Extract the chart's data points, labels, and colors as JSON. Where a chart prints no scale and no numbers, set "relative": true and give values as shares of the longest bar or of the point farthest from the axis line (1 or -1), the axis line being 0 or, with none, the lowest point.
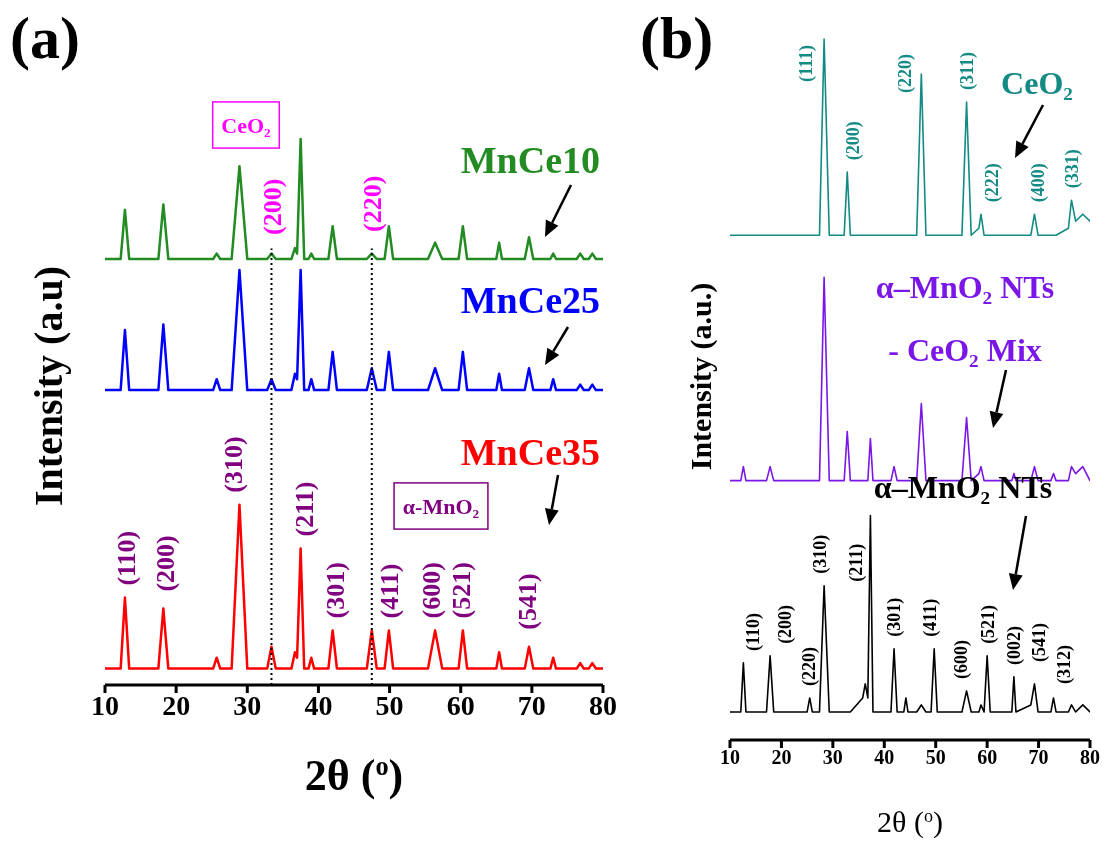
{
  "chart_data": [
    {
      "type": "line",
      "title": "(a)",
      "xlabel": "2θ ($^{o}$)",
      "ylabel": "Intensity (a.u)",
      "relative": true,
      "tick_labels": "x",
      "xlim": [
        10,
        80
      ],
      "xticks": [
        10,
        20,
        30,
        40,
        50,
        60,
        70,
        80
      ],
      "x": [
        10,
        12.2,
        12.8,
        13.4,
        17.5,
        18.2,
        18.9,
        25.2,
        25.7,
        26.2,
        27.8,
        28.9,
        30.0,
        32.8,
        33.4,
        34.0,
        36.2,
        36.7,
        37.0,
        37.5,
        38.0,
        38.6,
        39.0,
        39.4,
        41.4,
        42.0,
        42.6,
        46.8,
        47.5,
        48.2,
        49.3,
        49.9,
        50.5,
        55.4,
        56.4,
        57.4,
        59.7,
        60.3,
        60.9,
        65.0,
        65.4,
        65.8,
        69.0,
        69.6,
        70.2,
        72.6,
        73.0,
        73.4,
        76.3,
        76.8,
        77.3,
        78.0,
        78.5,
        79.0,
        80
      ],
      "series": [
        {
          "name": "MnCe10",
          "color": "#228b22",
          "values": [
            0.78,
            0.78,
            0.87,
            0.78,
            0.78,
            0.88,
            0.78,
            0.78,
            0.79,
            0.78,
            0.78,
            0.95,
            0.78,
            0.78,
            0.79,
            0.78,
            0.78,
            0.8,
            0.79,
            1.0,
            0.78,
            0.78,
            0.79,
            0.78,
            0.78,
            0.84,
            0.78,
            0.78,
            0.79,
            0.78,
            0.78,
            0.84,
            0.78,
            0.78,
            0.81,
            0.78,
            0.78,
            0.84,
            0.78,
            0.78,
            0.81,
            0.78,
            0.78,
            0.82,
            0.78,
            0.78,
            0.79,
            0.78,
            0.78,
            0.79,
            0.78,
            0.78,
            0.79,
            0.78,
            0.78
          ]
        },
        {
          "name": "MnCe25",
          "color": "#0000ff",
          "values": [
            0.54,
            0.54,
            0.65,
            0.54,
            0.54,
            0.66,
            0.54,
            0.54,
            0.56,
            0.54,
            0.54,
            0.76,
            0.54,
            0.54,
            0.56,
            0.54,
            0.54,
            0.57,
            0.56,
            0.76,
            0.54,
            0.54,
            0.56,
            0.54,
            0.54,
            0.61,
            0.54,
            0.54,
            0.58,
            0.54,
            0.54,
            0.61,
            0.54,
            0.54,
            0.58,
            0.54,
            0.54,
            0.61,
            0.54,
            0.54,
            0.57,
            0.54,
            0.54,
            0.58,
            0.54,
            0.54,
            0.56,
            0.54,
            0.54,
            0.55,
            0.54,
            0.54,
            0.55,
            0.54,
            0.54
          ]
        },
        {
          "name": "MnCe35",
          "color": "#ff0000",
          "values": [
            0.03,
            0.03,
            0.16,
            0.03,
            0.03,
            0.14,
            0.03,
            0.03,
            0.05,
            0.03,
            0.03,
            0.33,
            0.03,
            0.03,
            0.07,
            0.03,
            0.03,
            0.06,
            0.05,
            0.25,
            0.03,
            0.03,
            0.05,
            0.03,
            0.03,
            0.1,
            0.03,
            0.03,
            0.1,
            0.03,
            0.03,
            0.1,
            0.03,
            0.03,
            0.1,
            0.03,
            0.03,
            0.1,
            0.03,
            0.03,
            0.06,
            0.03,
            0.03,
            0.07,
            0.03,
            0.03,
            0.05,
            0.03,
            0.03,
            0.04,
            0.03,
            0.03,
            0.04,
            0.03,
            0.03
          ]
        }
      ],
      "ref_lines": [
        {
          "axis": "x",
          "value": 33.4,
          "line_style": "dotted"
        },
        {
          "axis": "x",
          "value": 47.5,
          "line_style": "dotted"
        }
      ],
      "annotations": [
        "CeO₂",
        "(200)",
        "(220)",
        "α-MnO₂",
        {
          "text": "(110)",
          "x": 12.8,
          "y": 0.16
        },
        {
          "text": "(200)",
          "x": 18.2,
          "y": 0.14
        },
        {
          "text": "(310)",
          "x": 28.9,
          "y": 0.33
        },
        {
          "text": "(211)",
          "x": 37.5,
          "y": 0.25
        },
        {
          "text": "(301)",
          "x": 42.0,
          "y": 0.1
        },
        {
          "text": "(411)",
          "x": 49.9,
          "y": 0.1
        },
        {
          "text": "(600)",
          "x": 56.4,
          "y": 0.1
        },
        {
          "text": "(521)",
          "x": 60.3,
          "y": 0.1
        },
        {
          "text": "(541)",
          "x": 69.6,
          "y": 0.07
        }
      ]
    },
    {
      "type": "line",
      "title": "(b)",
      "xlabel": "2θ ($^{o}$)",
      "ylabel": "Intensity (a.u.)",
      "relative": true,
      "tick_labels": "x",
      "xlim": [
        10,
        80
      ],
      "xticks": [
        10,
        20,
        30,
        40,
        50,
        60,
        70,
        80
      ],
      "x": [
        10,
        12.1,
        12.6,
        13.1,
        17.1,
        17.8,
        18.5,
        25.0,
        25.5,
        26.0,
        27.4,
        28.3,
        29.3,
        32.2,
        32.8,
        33.4,
        35.8,
        36.3,
        36.8,
        37.3,
        37.8,
        41.3,
        41.9,
        42.5,
        43.8,
        44.2,
        44.6,
        46.3,
        47.2,
        48.1,
        49.1,
        49.7,
        50.3,
        55.1,
        56.0,
        56.9,
        58.4,
        58.8,
        59.4,
        60.0,
        60.6,
        64.8,
        65.2,
        65.6,
        68.5,
        69.2,
        69.9,
        72.4,
        72.9,
        73.4,
        75.8,
        76.4,
        77.2,
        78.6,
        80
      ],
      "series": [
        {
          "name": "CeO₂",
          "color": "#138a84",
          "values": [
            0.72,
            0.72,
            0.72,
            0.72,
            0.72,
            0.72,
            0.72,
            0.72,
            0.72,
            0.72,
            0.72,
            1.0,
            0.72,
            0.72,
            0.81,
            0.72,
            0.72,
            0.72,
            0.72,
            0.72,
            0.72,
            0.72,
            0.72,
            0.72,
            0.72,
            0.72,
            0.72,
            0.72,
            0.95,
            0.72,
            0.72,
            0.72,
            0.72,
            0.72,
            0.91,
            0.72,
            0.73,
            0.75,
            0.72,
            0.72,
            0.72,
            0.72,
            0.72,
            0.72,
            0.72,
            0.75,
            0.72,
            0.72,
            0.72,
            0.72,
            0.73,
            0.77,
            0.74,
            0.75,
            0.74
          ]
        },
        {
          "name": "α–MnO₂ NTs - CeO₂ Mix",
          "color": "#7b16e8",
          "values": [
            0.37,
            0.37,
            0.39,
            0.37,
            0.37,
            0.39,
            0.37,
            0.37,
            0.37,
            0.37,
            0.37,
            0.66,
            0.37,
            0.37,
            0.44,
            0.37,
            0.37,
            0.37,
            0.37,
            0.43,
            0.37,
            0.37,
            0.39,
            0.37,
            0.37,
            0.37,
            0.37,
            0.37,
            0.48,
            0.37,
            0.37,
            0.37,
            0.37,
            0.37,
            0.46,
            0.37,
            0.38,
            0.39,
            0.37,
            0.37,
            0.37,
            0.37,
            0.38,
            0.37,
            0.37,
            0.39,
            0.37,
            0.37,
            0.38,
            0.37,
            0.37,
            0.39,
            0.38,
            0.39,
            0.37
          ]
        },
        {
          "name": "α–MnO₂ NTs",
          "color": "#000000",
          "values": [
            0.04,
            0.04,
            0.11,
            0.04,
            0.04,
            0.12,
            0.04,
            0.04,
            0.06,
            0.04,
            0.04,
            0.22,
            0.04,
            0.04,
            0.04,
            0.04,
            0.06,
            0.08,
            0.06,
            0.32,
            0.04,
            0.04,
            0.13,
            0.04,
            0.04,
            0.06,
            0.04,
            0.04,
            0.05,
            0.04,
            0.04,
            0.13,
            0.04,
            0.04,
            0.07,
            0.04,
            0.04,
            0.05,
            0.04,
            0.12,
            0.04,
            0.04,
            0.09,
            0.04,
            0.05,
            0.08,
            0.04,
            0.04,
            0.06,
            0.04,
            0.04,
            0.05,
            0.04,
            0.05,
            0.04
          ]
        }
      ],
      "annotations": [
        {
          "text": "(111)",
          "x": 28.3,
          "y": 1.0
        },
        {
          "text": "(200)",
          "x": 32.8,
          "y": 0.81
        },
        {
          "text": "(220)",
          "x": 47.2,
          "y": 0.95
        },
        {
          "text": "(311)",
          "x": 56.0,
          "y": 0.91
        },
        {
          "text": "(222)",
          "x": 58.8,
          "y": 0.75
        },
        {
          "text": "(400)",
          "x": 69.2,
          "y": 0.75
        },
        {
          "text": "(331)",
          "x": 76.4,
          "y": 0.77
        },
        {
          "text": "(110)",
          "x": 12.6,
          "y": 0.11
        },
        {
          "text": "(200)",
          "x": 17.8,
          "y": 0.12
        },
        {
          "text": "(220)",
          "x": 25.5,
          "y": 0.06
        },
        {
          "text": "(310)",
          "x": 28.3,
          "y": 0.22
        },
        {
          "text": "(211)",
          "x": 37.3,
          "y": 0.32
        },
        {
          "text": "(301)",
          "x": 41.9,
          "y": 0.13
        },
        {
          "text": "(411)",
          "x": 49.7,
          "y": 0.13
        },
        {
          "text": "(600)",
          "x": 56.0,
          "y": 0.07
        },
        {
          "text": "(521)",
          "x": 60.0,
          "y": 0.12
        },
        {
          "text": "(002)",
          "x": 65.2,
          "y": 0.09
        },
        {
          "text": "(541)",
          "x": 69.2,
          "y": 0.08
        },
        {
          "text": "(312)",
          "x": 72.9,
          "y": 0.06
        }
      ]
    }
  ]
}
